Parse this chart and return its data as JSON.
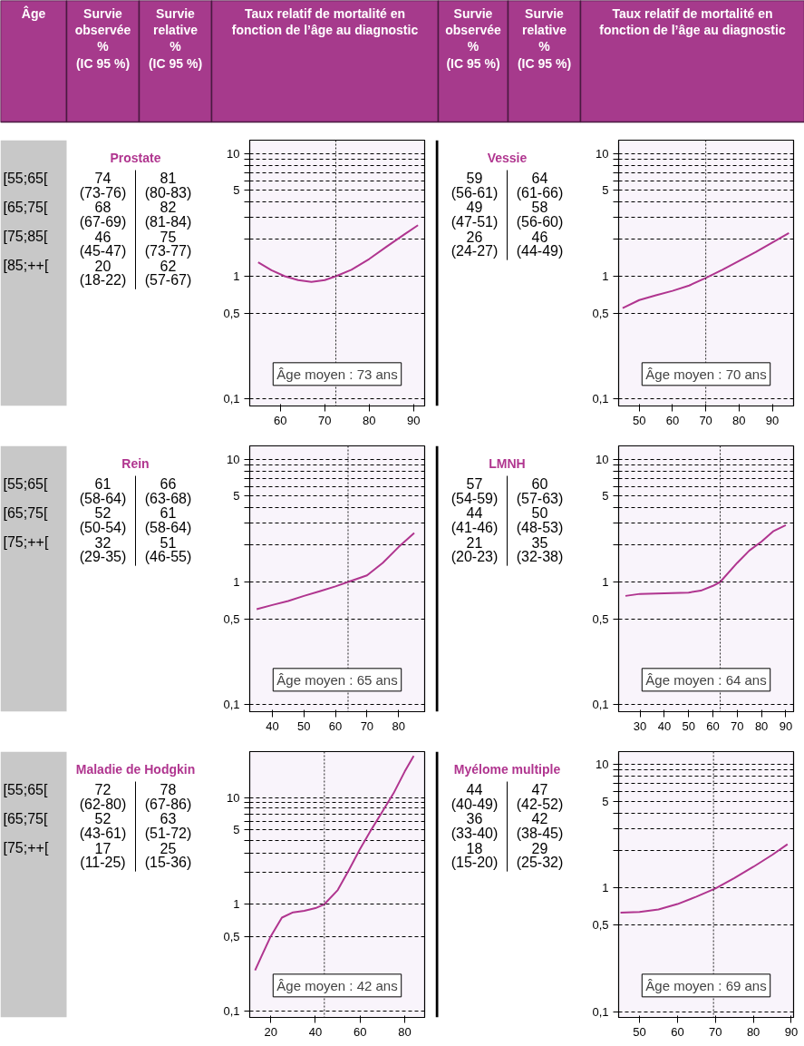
{
  "chart_data": [
    {
      "type": "other",
      "annotations": [
        "Âge",
        "Survie\nobservée\n%\n(IC 95 %)",
        "Survie\nrelative\n%\n(IC 95 %)",
        "Taux relatif de mortalité en\nfonction de l’âge au diagnostic",
        "Survie\nobservée\n%\n(IC 95 %)",
        "Survie\nrelative\n%\n(IC 95 %)",
        "Taux relatif de mortalité en\nfonction de l’âge au diagnostic"
      ]
    },
    {
      "type": "other",
      "title": "Prostate",
      "categories": [
        "[55;65[",
        "[65;75[",
        "[75;85[",
        "[85;++["
      ],
      "annotations": [
        "74",
        "(73-76)",
        "81",
        "(80-83)",
        "68",
        "(67-69)",
        "82",
        "(81-84)",
        "46",
        "(45-47)",
        "75",
        "(73-77)",
        "20",
        "(18-22)",
        "62",
        "(57-67)"
      ]
    },
    {
      "type": "line",
      "x": [
        55,
        58,
        61,
        64,
        67,
        70,
        72.5,
        76,
        80,
        84,
        88,
        91
      ],
      "values": [
        1.3,
        1.12,
        1.0,
        0.93,
        0.9,
        0.93,
        1.0,
        1.13,
        1.38,
        1.75,
        2.2,
        2.6
      ],
      "color": "#b0358f",
      "xlim": [
        53.1,
        92.5
      ],
      "ylim": [
        0.088,
        12.8
      ],
      "xticks": [
        60,
        70,
        80,
        90
      ],
      "yticks": [
        {
          "value": 0.1,
          "label": "0,1"
        },
        {
          "value": 0.5,
          "label": "0,5"
        },
        1,
        {
          "value": 2,
          "label": null
        },
        {
          "value": 3,
          "label": null
        },
        {
          "value": 4,
          "label": null
        },
        5,
        {
          "value": 6,
          "label": null
        },
        {
          "value": 7,
          "label": null
        },
        {
          "value": 8,
          "label": null
        },
        {
          "value": 9,
          "label": null
        },
        10
      ],
      "log": "y",
      "grid": "y",
      "ref_lines": [
        {
          "axis": "x",
          "value": 72.5
        }
      ],
      "annotations": [
        "Âge moyen : 73 ans"
      ]
    },
    {
      "type": "other",
      "title": "Vessie",
      "annotations": [
        "59",
        "(56-61)",
        "64",
        "(61-66)",
        "49",
        "(47-51)",
        "58",
        "(56-60)",
        "26",
        "(24-27)",
        "46",
        "(44-49)"
      ]
    },
    {
      "type": "line",
      "x": [
        45,
        50,
        55,
        60,
        65,
        70,
        75,
        80,
        85,
        90,
        95
      ],
      "values": [
        0.55,
        0.64,
        0.7,
        0.76,
        0.84,
        0.97,
        1.13,
        1.33,
        1.57,
        1.88,
        2.25
      ],
      "color": "#b0358f",
      "xlim": [
        43.8,
        96.4
      ],
      "ylim": [
        0.088,
        12.8
      ],
      "xticks": [
        50,
        60,
        70,
        80,
        90
      ],
      "yticks": [
        {
          "value": 0.1,
          "label": "0,1"
        },
        {
          "value": 0.5,
          "label": "0,5"
        },
        1,
        {
          "value": 2,
          "label": null
        },
        {
          "value": 3,
          "label": null
        },
        {
          "value": 4,
          "label": null
        },
        5,
        {
          "value": 6,
          "label": null
        },
        {
          "value": 7,
          "label": null
        },
        {
          "value": 8,
          "label": null
        },
        {
          "value": 9,
          "label": null
        },
        10
      ],
      "log": "y",
      "grid": "y",
      "ref_lines": [
        {
          "axis": "x",
          "value": 70
        }
      ],
      "annotations": [
        "Âge moyen : 70 ans"
      ]
    },
    {
      "type": "other",
      "title": "Rein",
      "categories": [
        "[55;65[",
        "[65;75[",
        "[75;++["
      ],
      "annotations": [
        "61",
        "(58-64)",
        "66",
        "(63-68)",
        "52",
        "(50-54)",
        "61",
        "(58-64)",
        "32",
        "(29-35)",
        "51",
        "(46-55)"
      ]
    },
    {
      "type": "line",
      "x": [
        35,
        40,
        45,
        50,
        55,
        60,
        64,
        70,
        75,
        80,
        85
      ],
      "values": [
        0.6,
        0.65,
        0.7,
        0.77,
        0.84,
        0.92,
        1.0,
        1.13,
        1.43,
        1.92,
        2.5
      ],
      "color": "#b0358f",
      "xlim": [
        32.8,
        88.3
      ],
      "ylim": [
        0.088,
        12.8
      ],
      "xticks": [
        40,
        50,
        60,
        70,
        80
      ],
      "yticks": [
        {
          "value": 0.1,
          "label": "0,1"
        },
        {
          "value": 0.5,
          "label": "0,5"
        },
        1,
        {
          "value": 2,
          "label": null
        },
        {
          "value": 3,
          "label": null
        },
        {
          "value": 4,
          "label": null
        },
        5,
        {
          "value": 6,
          "label": null
        },
        {
          "value": 7,
          "label": null
        },
        {
          "value": 8,
          "label": null
        },
        {
          "value": 9,
          "label": null
        },
        10
      ],
      "log": "y",
      "grid": "y",
      "ref_lines": [
        {
          "axis": "x",
          "value": 64
        }
      ],
      "annotations": [
        "Âge moyen : 65 ans"
      ]
    },
    {
      "type": "other",
      "title": "LMNH",
      "annotations": [
        "57",
        "(54-59)",
        "60",
        "(57-63)",
        "44",
        "(41-46)",
        "50",
        "(48-53)",
        "21",
        "(20-23)",
        "35",
        "(32-38)"
      ]
    },
    {
      "type": "line",
      "x": [
        24,
        30,
        40,
        50,
        55,
        60,
        63,
        70,
        75,
        80,
        85,
        90
      ],
      "values": [
        0.77,
        0.8,
        0.81,
        0.82,
        0.85,
        0.93,
        1.0,
        1.43,
        1.8,
        2.13,
        2.6,
        2.9
      ],
      "color": "#b0358f",
      "xlim": [
        21.2,
        93.2
      ],
      "ylim": [
        0.088,
        12.8
      ],
      "xticks": [
        30,
        40,
        50,
        60,
        70,
        80,
        90
      ],
      "yticks": [
        {
          "value": 0.1,
          "label": "0,1"
        },
        {
          "value": 0.5,
          "label": "0,5"
        },
        1,
        {
          "value": 2,
          "label": null
        },
        {
          "value": 3,
          "label": null
        },
        {
          "value": 4,
          "label": null
        },
        5,
        {
          "value": 6,
          "label": null
        },
        {
          "value": 7,
          "label": null
        },
        {
          "value": 8,
          "label": null
        },
        {
          "value": 9,
          "label": null
        },
        10
      ],
      "log": "y",
      "grid": "y",
      "ref_lines": [
        {
          "axis": "x",
          "value": 63
        }
      ],
      "annotations": [
        "Âge moyen : 64 ans"
      ]
    },
    {
      "type": "other",
      "title": "Maladie de Hodgkin",
      "categories": [
        "[55;65[",
        "[65;75[",
        "[75;++["
      ],
      "annotations": [
        "72",
        "(62-80)",
        "78",
        "(67-86)",
        "52",
        "(43-61)",
        "63",
        "(51-72)",
        "17",
        "(11-25)",
        "25",
        "(15-36)"
      ]
    },
    {
      "type": "line",
      "x": [
        13,
        16,
        20,
        25,
        30,
        35,
        40,
        44,
        50,
        55,
        60,
        65,
        70,
        75,
        80,
        84
      ],
      "values": [
        0.24,
        0.33,
        0.5,
        0.75,
        0.84,
        0.87,
        0.92,
        1.0,
        1.36,
        2.1,
        3.3,
        5.0,
        7.4,
        11,
        17.6,
        24.6
      ],
      "color": "#b0358f",
      "xlim": [
        10.6,
        88.9
      ],
      "ylim": [
        0.087,
        27
      ],
      "xticks": [
        20,
        40,
        60,
        80
      ],
      "yticks": [
        {
          "value": 0.1,
          "label": "0,1"
        },
        {
          "value": 0.5,
          "label": "0,5"
        },
        1,
        {
          "value": 2,
          "label": null
        },
        {
          "value": 3,
          "label": null
        },
        {
          "value": 4,
          "label": null
        },
        5,
        {
          "value": 6,
          "label": null
        },
        {
          "value": 7,
          "label": null
        },
        {
          "value": 8,
          "label": null
        },
        {
          "value": 9,
          "label": null
        },
        10
      ],
      "log": "y",
      "grid": "y",
      "ref_lines": [
        {
          "axis": "x",
          "value": 44
        }
      ],
      "annotations": [
        "Âge moyen : 42 ans"
      ]
    },
    {
      "type": "other",
      "title": "Myélome multiple",
      "annotations": [
        "44",
        "(40-49)",
        "47",
        "(42-52)",
        "36",
        "(33-40)",
        "42",
        "(38-45)",
        "18",
        "(15-20)",
        "29",
        "(25-32)"
      ]
    },
    {
      "type": "line",
      "x": [
        45,
        50,
        55,
        60,
        65,
        70,
        75,
        80,
        85,
        89
      ],
      "values": [
        0.63,
        0.64,
        0.67,
        0.74,
        0.85,
        0.99,
        1.2,
        1.48,
        1.85,
        2.25
      ],
      "color": "#b0358f",
      "xlim": [
        44.5,
        90.6
      ],
      "ylim": [
        0.09,
        12.6
      ],
      "xticks": [
        50,
        60,
        70,
        80,
        90
      ],
      "yticks": [
        {
          "value": 0.1,
          "label": "0,1"
        },
        {
          "value": 0.5,
          "label": "0,5"
        },
        1,
        {
          "value": 2,
          "label": null
        },
        {
          "value": 3,
          "label": null
        },
        {
          "value": 4,
          "label": null
        },
        5,
        {
          "value": 6,
          "label": null
        },
        {
          "value": 7,
          "label": null
        },
        {
          "value": 8,
          "label": null
        },
        {
          "value": 9,
          "label": null
        },
        10
      ],
      "log": "y",
      "grid": "y",
      "ref_lines": [
        {
          "axis": "x",
          "value": 69.5
        }
      ],
      "annotations": [
        "Âge moyen : 69 ans"
      ]
    }
  ]
}
